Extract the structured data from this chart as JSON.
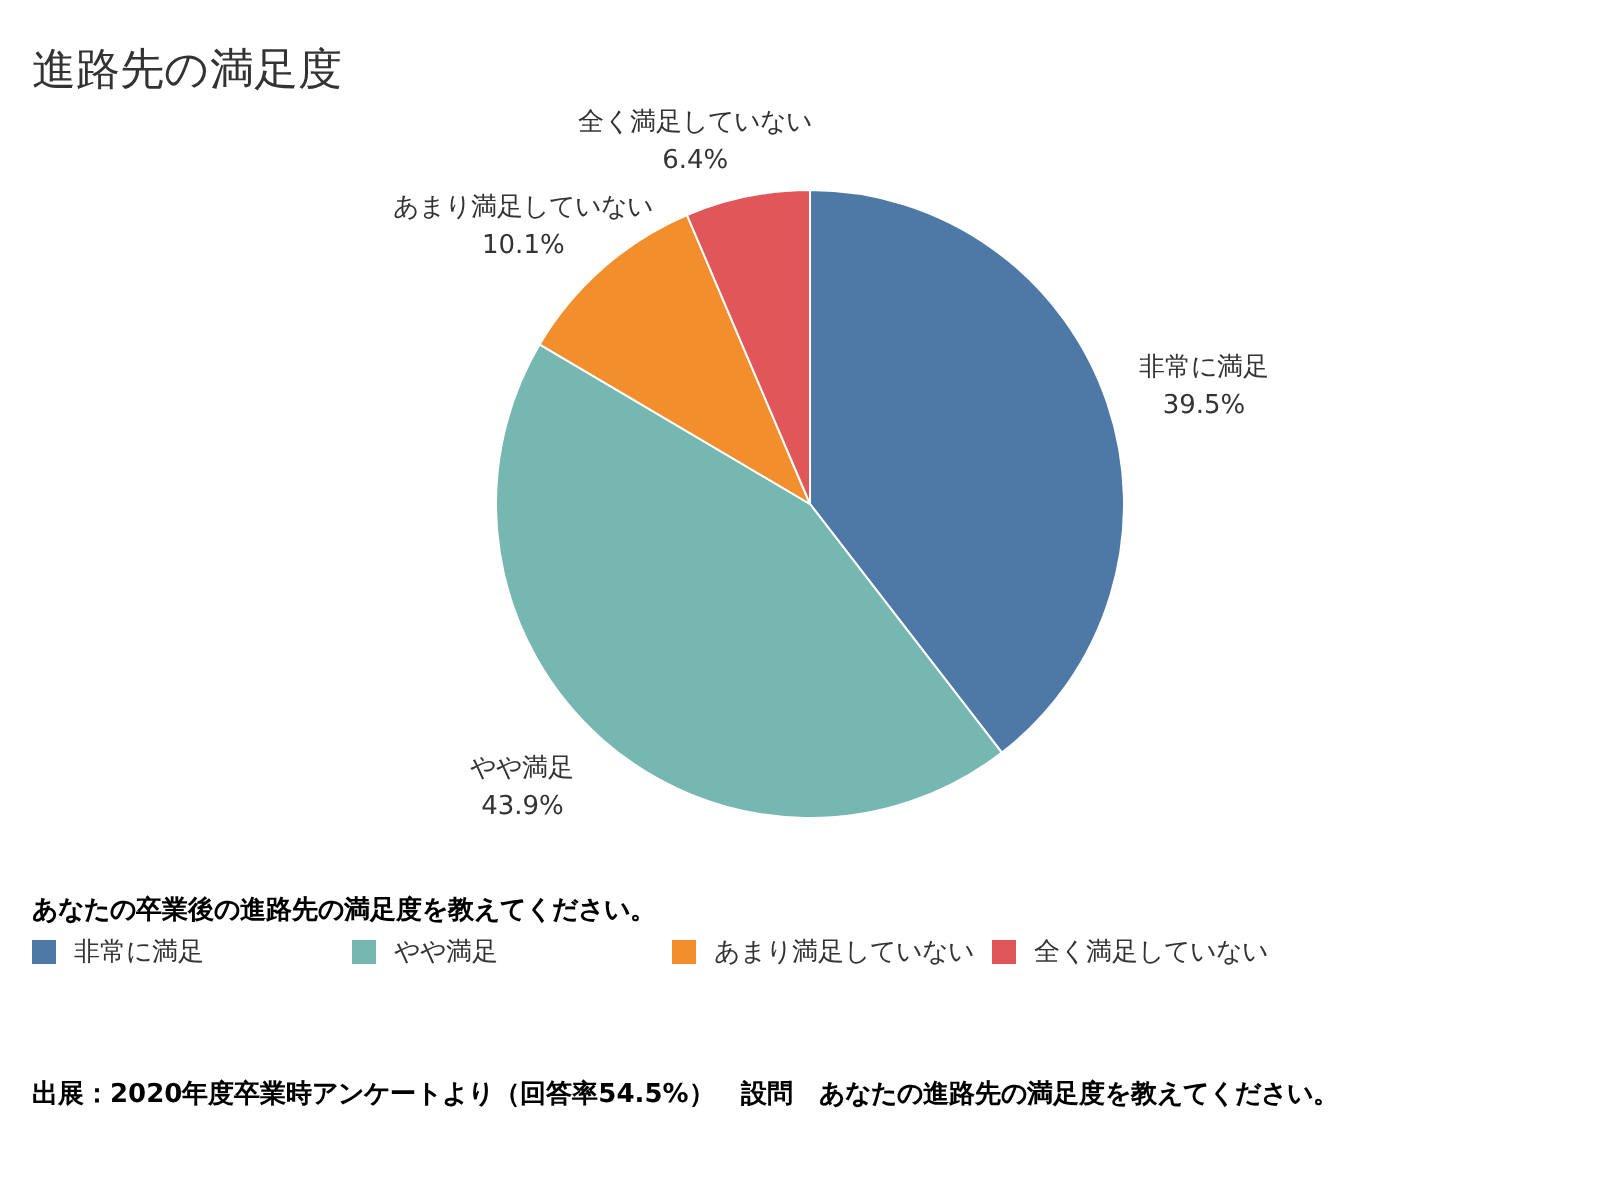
{
  "chart_data": {
    "type": "pie",
    "title": "進路先の満足度",
    "categories": [
      "非常に満足",
      "やや満足",
      "あまり満足していない",
      "全く満足していない"
    ],
    "values": [
      39.5,
      43.9,
      10.1,
      6.4
    ],
    "colors": [
      "#4e79a7",
      "#76b7b2",
      "#f28e2b",
      "#e15759"
    ],
    "value_labels": [
      "39.5%",
      "43.9%",
      "10.1%",
      "6.4%"
    ],
    "legend_title": "あなたの卒業後の進路先の満足度を教えてください。",
    "legend": "bottom",
    "annotations": [
      "出展：2020年度卒業時アンケートより（回答率54.5%）　設問　あなたの進路先の満足度を教えてください。"
    ]
  }
}
